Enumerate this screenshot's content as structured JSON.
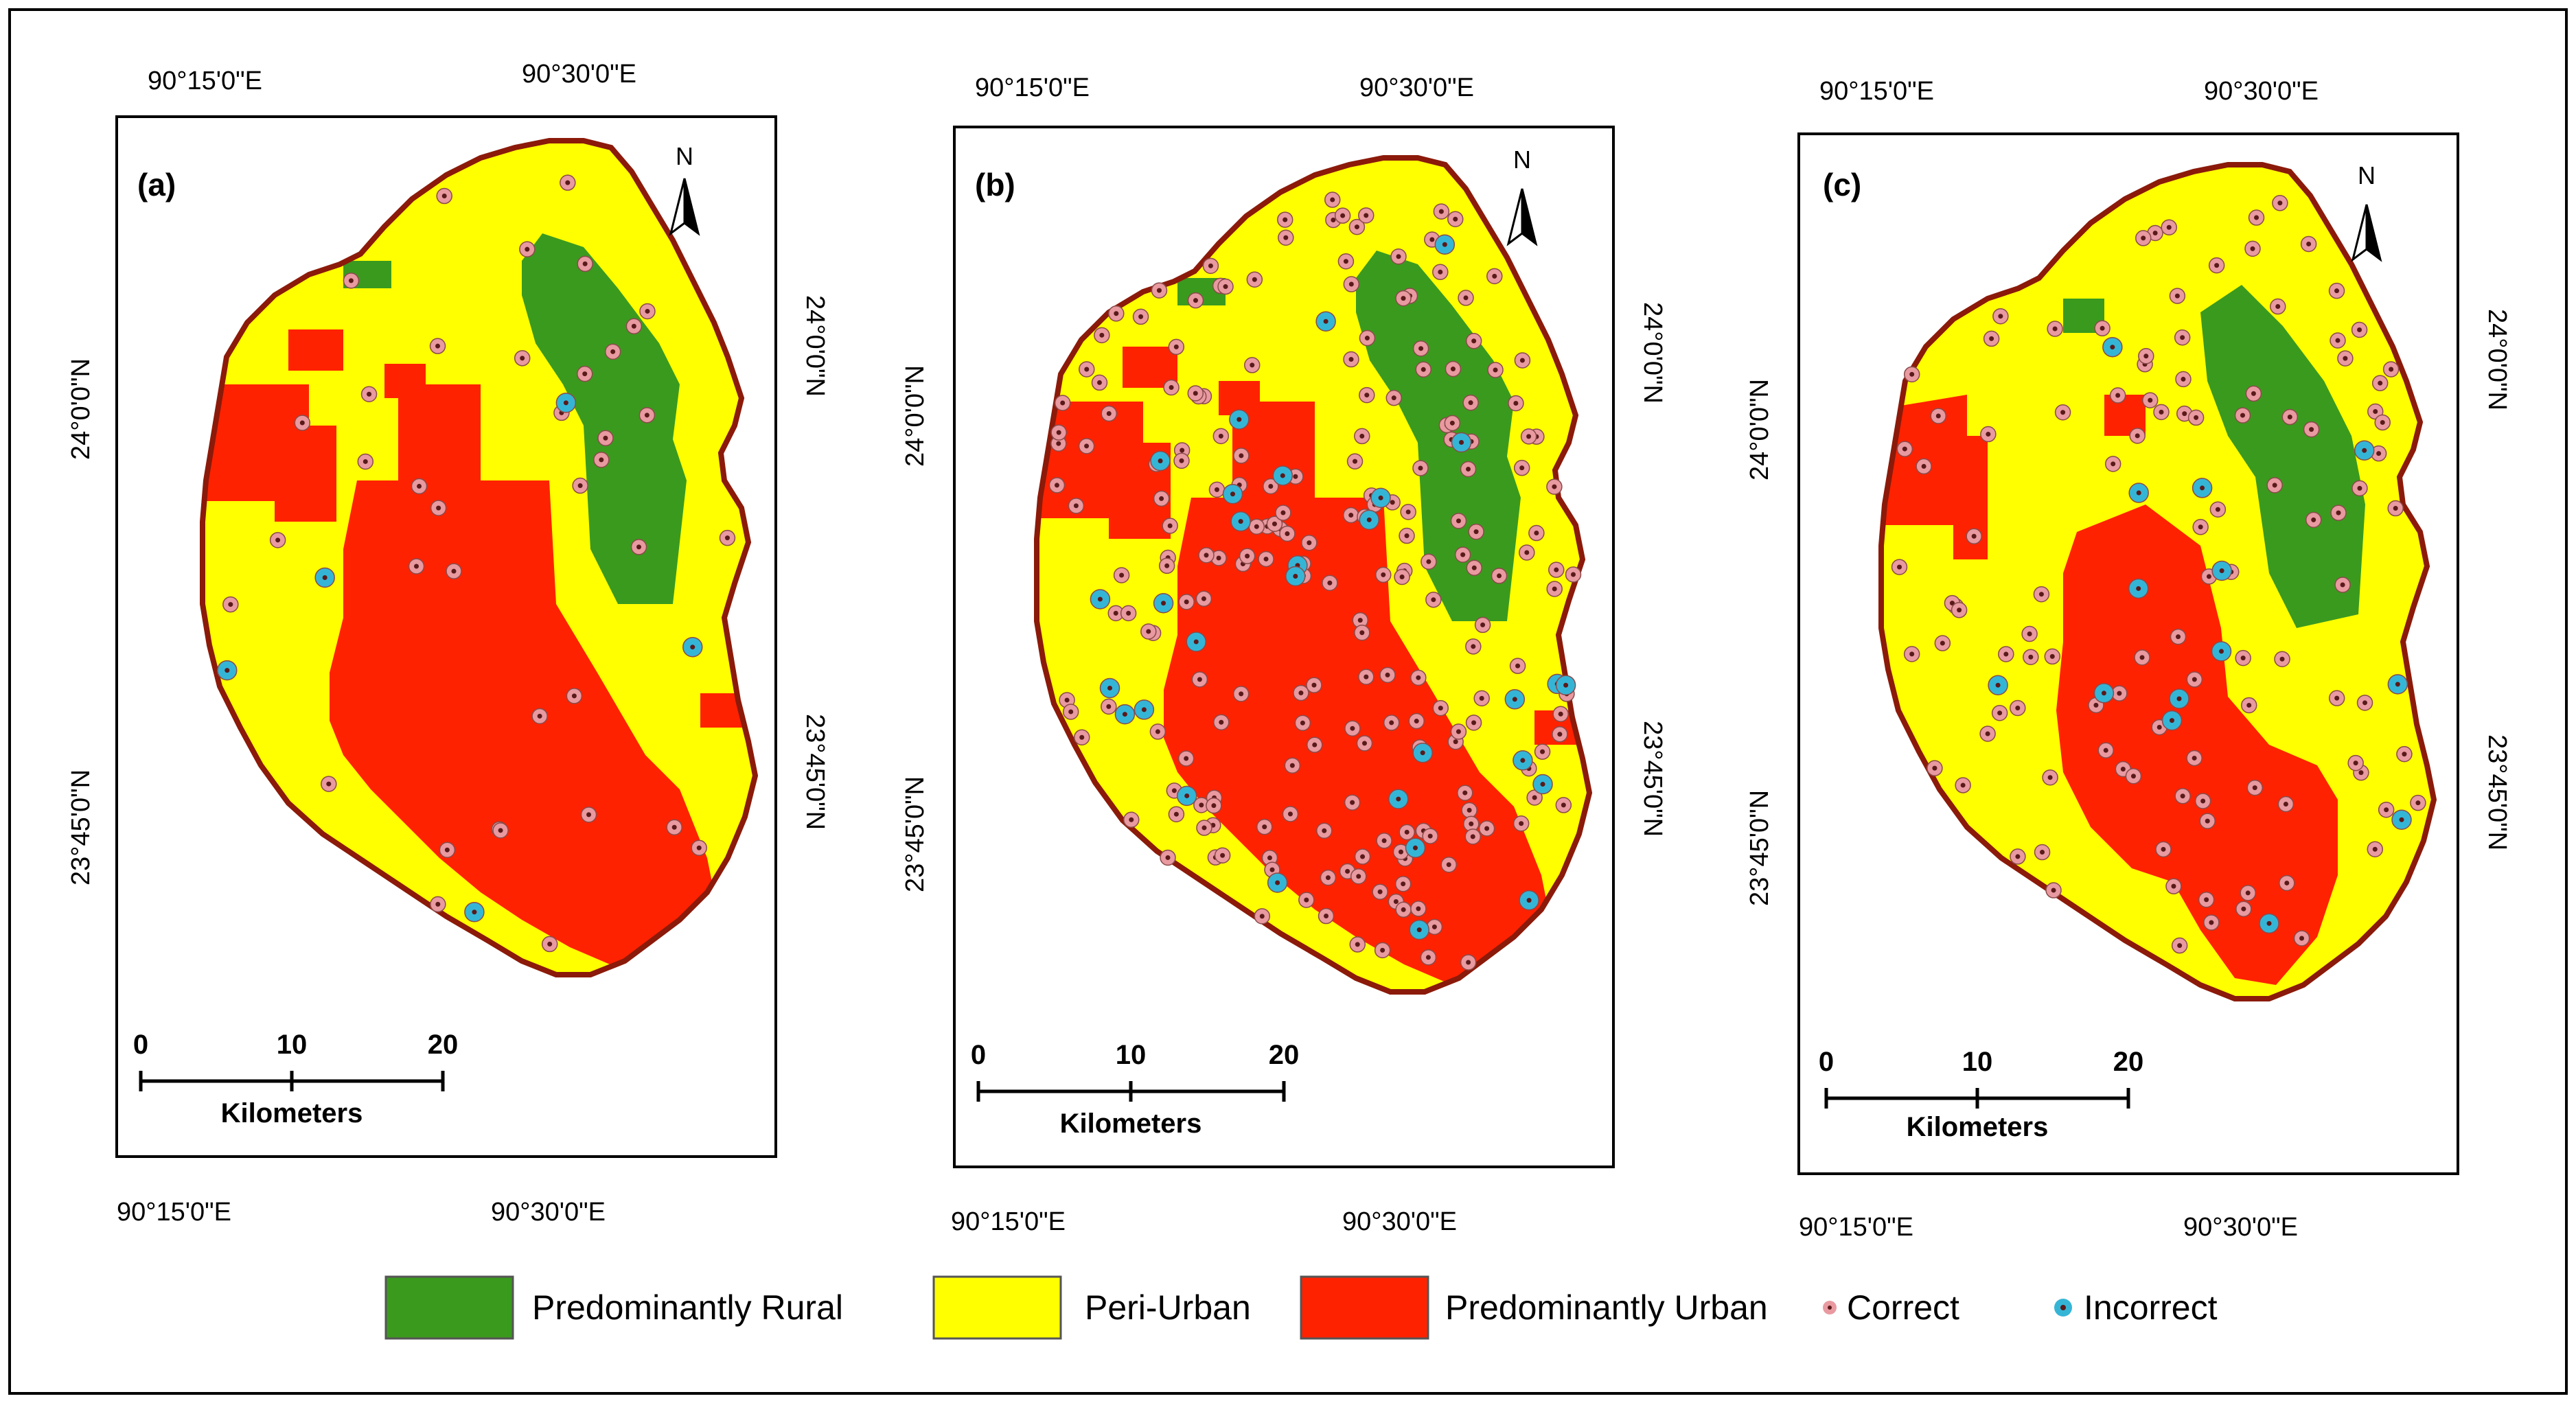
{
  "panels": [
    {
      "label": "(a)",
      "top_coords": [
        "90°15'0\"E",
        "90°30'0\"E"
      ],
      "bottom_coords": [
        "90°15'0\"E",
        "90°30'0\"E"
      ],
      "left_coords": [
        "24°0'0\"N",
        "23°45'0\"N"
      ],
      "right_coords": [
        "24°0'0\"N",
        "23°45'0\"N"
      ],
      "north": "N",
      "scale": {
        "ticks": [
          "0",
          "10",
          "20"
        ],
        "unit": "Kilometers"
      },
      "samples": {
        "correct": 38,
        "incorrect": 5
      }
    },
    {
      "label": "(b)",
      "top_coords": [
        "90°15'0\"E",
        "90°30'0\"E"
      ],
      "bottom_coords": [
        "90°15'0\"E",
        "90°30'0\"E"
      ],
      "left_coords": [
        "24°0'0\"N",
        "23°45'0\"N"
      ],
      "right_coords": [
        "24°0'0\"N",
        "23°45'0\"N"
      ],
      "north": "N",
      "scale": {
        "ticks": [
          "0",
          "10",
          "20"
        ],
        "unit": "Kilometers"
      },
      "samples": {
        "correct": 210,
        "incorrect": 30
      }
    },
    {
      "label": "(c)",
      "top_coords": [
        "90°15'0\"E",
        "90°30'0\"E"
      ],
      "bottom_coords": [
        "90°15'0\"E",
        "90°30'0\"E"
      ],
      "left_coords": [
        "24°0'0\"N",
        "23°45'0\"N"
      ],
      "right_coords": [
        "24°0'0\"N",
        "23°45'0\"N"
      ],
      "north": "N",
      "scale": {
        "ticks": [
          "0",
          "10",
          "20"
        ],
        "unit": "Kilometers"
      },
      "samples": {
        "correct": 110,
        "incorrect": 14
      }
    }
  ],
  "legend": [
    {
      "label": "Predominantly Rural",
      "color": "#3a9a1e",
      "kind": "swatch"
    },
    {
      "label": "Peri-Urban",
      "color": "#ffff00",
      "kind": "swatch"
    },
    {
      "label": "Predominantly Urban",
      "color": "#ff2200",
      "kind": "swatch"
    },
    {
      "label": "Correct",
      "color": "#e89aa0",
      "kind": "point"
    },
    {
      "label": "Incorrect",
      "color": "#35b5d6",
      "kind": "point"
    }
  ],
  "colors": {
    "rural": "#3a9a1e",
    "periurban": "#ffff00",
    "urban": "#ff2200",
    "boundary": "#8b1a0a",
    "correct": "#e89aa0",
    "incorrect": "#35b5d6",
    "point_center": "#5a1a1a"
  }
}
